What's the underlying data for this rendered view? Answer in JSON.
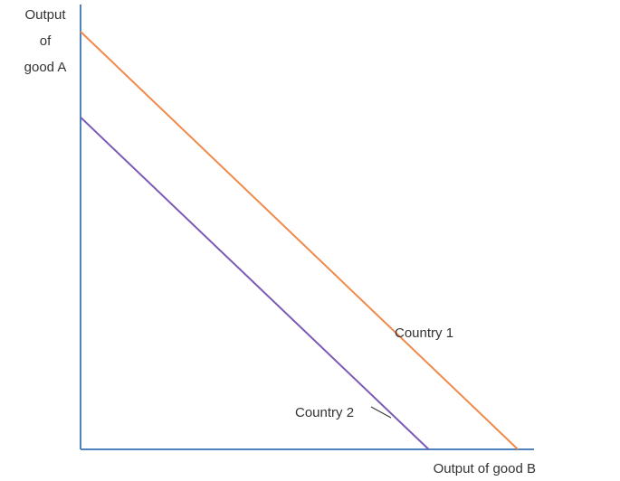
{
  "chart_data": {
    "type": "line",
    "title": "",
    "xlabel": "Output of good B",
    "ylabel_lines": [
      "Output",
      "of",
      "good A"
    ],
    "grid": false,
    "axis_color": "#4f81bd",
    "series": [
      {
        "name": "Country 1",
        "color": "#f0894a",
        "points": [
          [
            0,
            100
          ],
          [
            103,
            0
          ]
        ]
      },
      {
        "name": "Country 2",
        "color": "#7b5ab5",
        "points": [
          [
            0,
            79.5
          ],
          [
            82,
            0
          ]
        ]
      }
    ],
    "xlim": [
      0,
      110
    ],
    "ylim": [
      0,
      100
    ]
  }
}
